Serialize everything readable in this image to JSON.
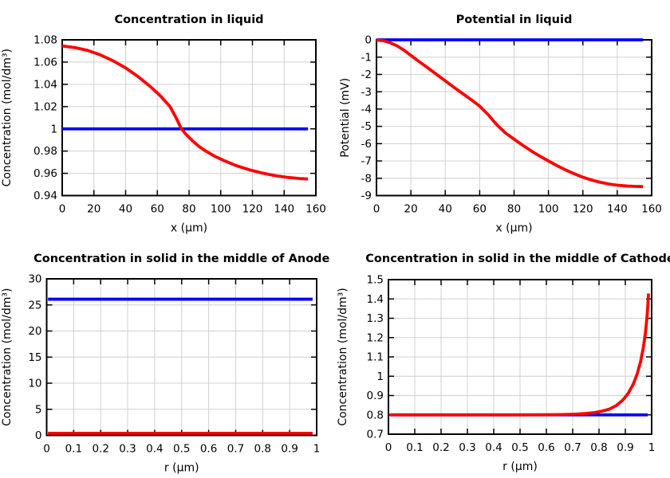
{
  "style": {
    "background": "#ffffff",
    "frame_color": "#000000",
    "grid_color": "#d0d0d0",
    "text_color": "#000000",
    "reference_line_color": "#0000ff",
    "profile_line_color": "#ff0000"
  },
  "chart_data": [
    {
      "type": "line",
      "title": "Concentration in liquid",
      "xlabel": "x (μm)",
      "ylabel": "Concentration (mol/dm³)",
      "xlim": [
        0,
        160
      ],
      "ylim": [
        0.94,
        1.08
      ],
      "grid": true,
      "legend": "none",
      "xticks": {
        "values": [
          0,
          20,
          40,
          60,
          80,
          100,
          120,
          140,
          160
        ],
        "labels": [
          "0",
          "20",
          "40",
          "60",
          "80",
          "100",
          "120",
          "140",
          "160"
        ]
      },
      "yticks": {
        "values": [
          0.94,
          0.96,
          0.98,
          1,
          1.02,
          1.04,
          1.06,
          1.08
        ],
        "labels": [
          "0.94",
          "0.96",
          "0.98",
          "1",
          "1.02",
          "1.04",
          "1.06",
          "1.08"
        ]
      },
      "series": [
        {
          "name": "reference-line",
          "color": "#0000ff",
          "points": [
            [
              0,
              1
            ],
            [
              155,
              1
            ]
          ]
        },
        {
          "name": "profile-line",
          "color": "#ff0000",
          "points": [
            [
              0,
              1.0745
            ],
            [
              8,
              1.073
            ],
            [
              16,
              1.0705
            ],
            [
              24,
              1.0665
            ],
            [
              32,
              1.0612
            ],
            [
              40,
              1.0548
            ],
            [
              48,
              1.0468
            ],
            [
              56,
              1.0375
            ],
            [
              62,
              1.0295
            ],
            [
              68,
              1.02
            ],
            [
              72,
              1.0095
            ],
            [
              75,
              1.0005
            ],
            [
              78,
              0.9952
            ],
            [
              82,
              0.9895
            ],
            [
              86,
              0.9845
            ],
            [
              90,
              0.9805
            ],
            [
              96,
              0.9755
            ],
            [
              102,
              0.9715
            ],
            [
              110,
              0.9668
            ],
            [
              118,
              0.9632
            ],
            [
              126,
              0.9603
            ],
            [
              134,
              0.958
            ],
            [
              142,
              0.9564
            ],
            [
              150,
              0.9553
            ],
            [
              155,
              0.9549
            ]
          ]
        }
      ]
    },
    {
      "type": "line",
      "title": "Potential in liquid",
      "xlabel": "x (μm)",
      "ylabel": "Potential (mV)",
      "xlim": [
        0,
        160
      ],
      "ylim": [
        -9,
        0
      ],
      "grid": true,
      "legend": "none",
      "xticks": {
        "values": [
          0,
          20,
          40,
          60,
          80,
          100,
          120,
          140,
          160
        ],
        "labels": [
          "0",
          "20",
          "40",
          "60",
          "80",
          "100",
          "120",
          "140",
          "160"
        ]
      },
      "yticks": {
        "values": [
          0,
          -1,
          -2,
          -3,
          -4,
          -5,
          -6,
          -7,
          -8,
          -9
        ],
        "labels": [
          "0",
          "-1",
          "-2",
          "-3",
          "-4",
          "-5",
          "-6",
          "-7",
          "-8",
          "-9"
        ]
      },
      "series": [
        {
          "name": "reference-line",
          "color": "#0000ff",
          "points": [
            [
              0,
              0
            ],
            [
              155,
              0
            ]
          ]
        },
        {
          "name": "profile-line",
          "color": "#ff0000",
          "points": [
            [
              0,
              -0.01
            ],
            [
              4,
              -0.05
            ],
            [
              8,
              -0.17
            ],
            [
              12,
              -0.35
            ],
            [
              16,
              -0.6
            ],
            [
              20,
              -0.9
            ],
            [
              25,
              -1.27
            ],
            [
              30,
              -1.63
            ],
            [
              35,
              -2.0
            ],
            [
              40,
              -2.37
            ],
            [
              45,
              -2.74
            ],
            [
              50,
              -3.1
            ],
            [
              55,
              -3.45
            ],
            [
              60,
              -3.83
            ],
            [
              65,
              -4.33
            ],
            [
              69,
              -4.8
            ],
            [
              72,
              -5.1
            ],
            [
              75,
              -5.38
            ],
            [
              80,
              -5.74
            ],
            [
              85,
              -6.09
            ],
            [
              90,
              -6.42
            ],
            [
              95,
              -6.72
            ],
            [
              100,
              -7.0
            ],
            [
              105,
              -7.27
            ],
            [
              110,
              -7.52
            ],
            [
              115,
              -7.74
            ],
            [
              120,
              -7.94
            ],
            [
              125,
              -8.1
            ],
            [
              130,
              -8.23
            ],
            [
              135,
              -8.33
            ],
            [
              140,
              -8.4
            ],
            [
              146,
              -8.45
            ],
            [
              151,
              -8.47
            ],
            [
              155,
              -8.48
            ]
          ]
        }
      ]
    },
    {
      "type": "line",
      "title": "Concentration in solid in the middle of Anode",
      "xlabel": "r (μm)",
      "ylabel": "Concentration (mol/dm³)",
      "xlim": [
        0,
        1
      ],
      "ylim": [
        0,
        30
      ],
      "grid": true,
      "legend": "none",
      "xticks": {
        "values": [
          0,
          0.1,
          0.2,
          0.3,
          0.4,
          0.5,
          0.6,
          0.7,
          0.8,
          0.9,
          1
        ],
        "labels": [
          "0",
          "0.1",
          "0.2",
          "0.3",
          "0.4",
          "0.5",
          "0.6",
          "0.7",
          "0.8",
          "0.9",
          "1"
        ]
      },
      "yticks": {
        "values": [
          0,
          5,
          10,
          15,
          20,
          25,
          30
        ],
        "labels": [
          "0",
          "5",
          "10",
          "15",
          "20",
          "25",
          "30"
        ]
      },
      "series": [
        {
          "name": "reference-line",
          "color": "#0000ff",
          "points": [
            [
              0.005,
              26.1
            ],
            [
              0.985,
              26.1
            ]
          ]
        },
        {
          "name": "profile-line",
          "color": "#ff0000",
          "points": [
            [
              0.005,
              0.4
            ],
            [
              0.985,
              0.4
            ]
          ]
        }
      ]
    },
    {
      "type": "line",
      "title": "Concentration in solid in the middle of Cathode",
      "xlabel": "r (μm)",
      "ylabel": "Concentration (mol/dm³)",
      "xlim": [
        0,
        1
      ],
      "ylim": [
        0.7,
        1.5
      ],
      "grid": true,
      "legend": "none",
      "xticks": {
        "values": [
          0,
          0.1,
          0.2,
          0.3,
          0.4,
          0.5,
          0.6,
          0.7,
          0.8,
          0.9,
          1
        ],
        "labels": [
          "0",
          "0.1",
          "0.2",
          "0.3",
          "0.4",
          "0.5",
          "0.6",
          "0.7",
          "0.8",
          "0.9",
          "1"
        ]
      },
      "yticks": {
        "values": [
          0.7,
          0.8,
          0.9,
          1,
          1.1,
          1.2,
          1.3,
          1.4,
          1.5
        ],
        "labels": [
          "0.7",
          "0.8",
          "0.9",
          "1",
          "1.1",
          "1.2",
          "1.3",
          "1.4",
          "1.5"
        ]
      },
      "series": [
        {
          "name": "reference-line",
          "color": "#0000ff",
          "points": [
            [
              0.005,
              0.8
            ],
            [
              0.985,
              0.8
            ]
          ]
        },
        {
          "name": "profile-line",
          "color": "#ff0000",
          "points": [
            [
              0.005,
              0.8
            ],
            [
              0.3,
              0.8
            ],
            [
              0.5,
              0.8
            ],
            [
              0.6,
              0.8005
            ],
            [
              0.66,
              0.8015
            ],
            [
              0.71,
              0.8035
            ],
            [
              0.75,
              0.807
            ],
            [
              0.78,
              0.8115
            ],
            [
              0.81,
              0.8185
            ],
            [
              0.84,
              0.83
            ],
            [
              0.865,
              0.8475
            ],
            [
              0.89,
              0.876
            ],
            [
              0.91,
              0.9095
            ],
            [
              0.93,
              0.9585
            ],
            [
              0.945,
              1.012
            ],
            [
              0.958,
              1.076
            ],
            [
              0.968,
              1.145
            ],
            [
              0.976,
              1.22
            ],
            [
              0.982,
              1.3
            ],
            [
              0.9855,
              1.365
            ],
            [
              0.988,
              1.428
            ]
          ]
        }
      ]
    }
  ]
}
